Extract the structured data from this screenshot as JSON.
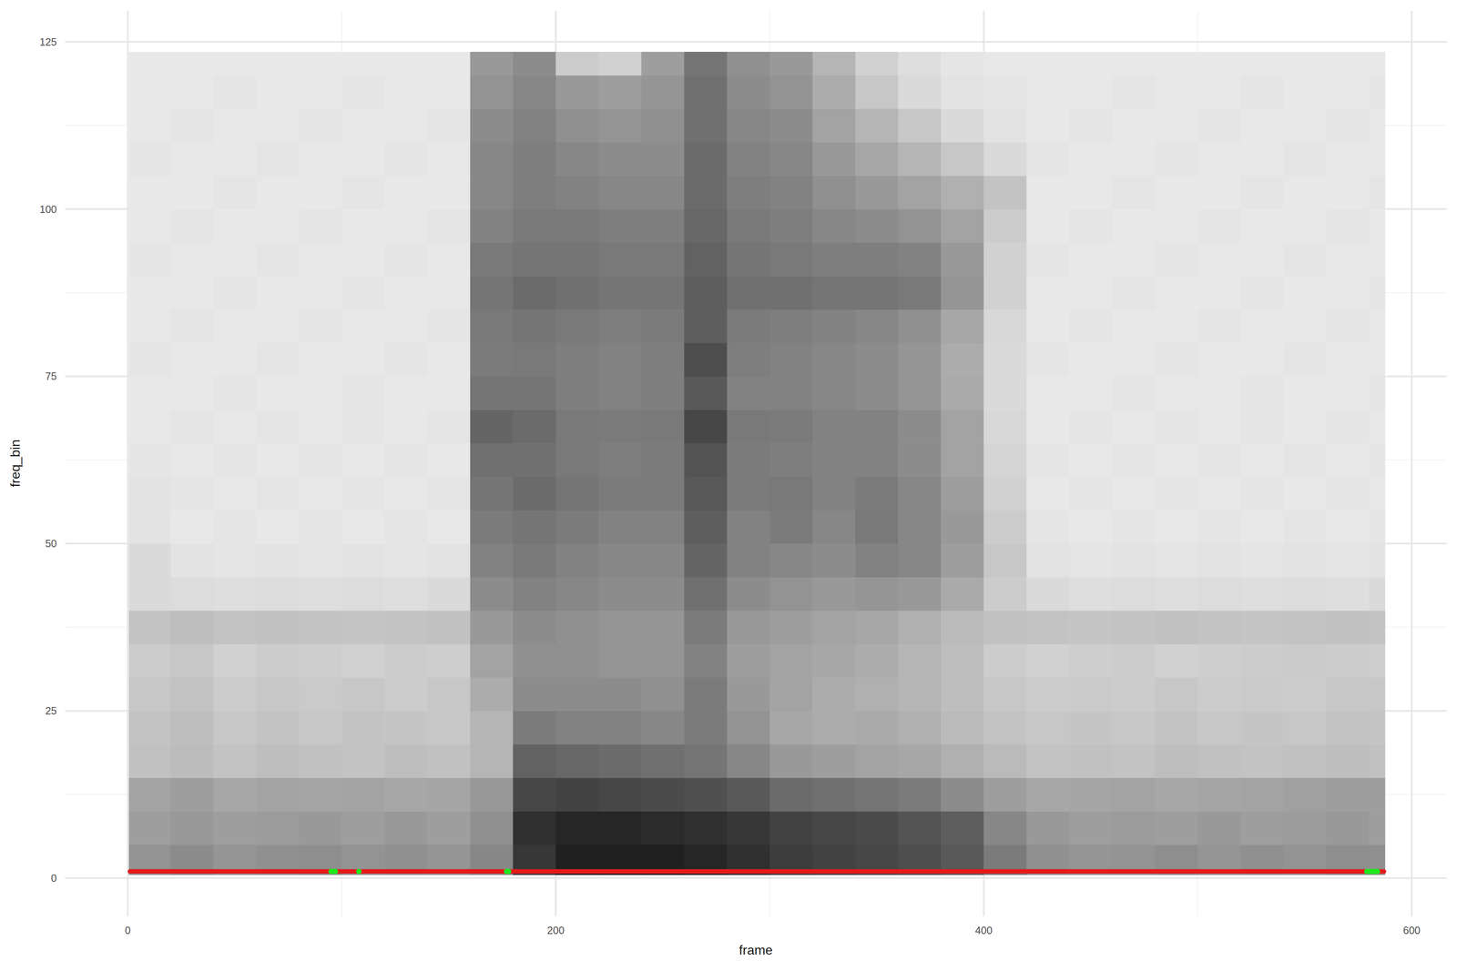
{
  "chart_data": {
    "type": "heatmap",
    "x_label": "frame",
    "y_label": "freq_bin",
    "xlim": [
      -29.35,
      616.35
    ],
    "ylim": [
      -5.65,
      129.65
    ],
    "xticks": [
      0,
      200,
      400,
      600
    ],
    "yticks": [
      0,
      25,
      50,
      75,
      100,
      125
    ],
    "grid": true,
    "cells": {
      "x_edges": [
        0.5,
        20,
        40,
        60,
        80,
        100,
        120,
        140,
        160,
        180,
        200,
        220,
        240,
        260,
        280,
        300,
        320,
        340,
        360,
        380,
        400,
        420,
        440,
        460,
        480,
        500,
        520,
        540,
        560,
        580,
        587.5
      ],
      "y_edges": [
        0.5,
        5,
        10,
        15,
        20,
        25,
        30,
        35,
        40,
        45,
        50,
        55,
        60,
        65,
        70,
        75,
        80,
        85,
        90,
        95,
        100,
        105,
        110,
        115,
        120,
        123.5
      ],
      "color_range": [
        0,
        100
      ],
      "values": [
        [
          45,
          48,
          44,
          46,
          47,
          45,
          46,
          44,
          50,
          85,
          95,
          95,
          95,
          92,
          88,
          82,
          80,
          78,
          75,
          70,
          55,
          46,
          44,
          45,
          47,
          44,
          46,
          45,
          47,
          46
        ],
        [
          40,
          42,
          40,
          41,
          42,
          40,
          42,
          40,
          46,
          88,
          92,
          92,
          90,
          88,
          85,
          80,
          78,
          76,
          72,
          68,
          50,
          42,
          40,
          41,
          40,
          42,
          40,
          41,
          42,
          40
        ],
        [
          38,
          40,
          36,
          38,
          37,
          38,
          36,
          37,
          42,
          78,
          80,
          78,
          76,
          74,
          70,
          62,
          60,
          58,
          55,
          48,
          40,
          36,
          37,
          38,
          36,
          37,
          38,
          39,
          40,
          40
        ],
        [
          25,
          27,
          24,
          26,
          25,
          24,
          26,
          25,
          30,
          66,
          64,
          62,
          60,
          58,
          50,
          42,
          40,
          38,
          36,
          32,
          28,
          24,
          25,
          24,
          26,
          25,
          24,
          25,
          26,
          25
        ],
        [
          24,
          26,
          22,
          24,
          22,
          24,
          23,
          22,
          30,
          55,
          52,
          52,
          50,
          55,
          45,
          36,
          34,
          35,
          32,
          28,
          24,
          22,
          23,
          22,
          24,
          22,
          23,
          22,
          24,
          23
        ],
        [
          22,
          24,
          20,
          22,
          21,
          22,
          20,
          22,
          34,
          48,
          48,
          48,
          46,
          55,
          42,
          38,
          34,
          32,
          30,
          26,
          22,
          20,
          21,
          20,
          22,
          20,
          21,
          20,
          22,
          22
        ],
        [
          20,
          22,
          18,
          20,
          19,
          18,
          20,
          19,
          38,
          46,
          46,
          44,
          44,
          52,
          40,
          38,
          36,
          34,
          30,
          26,
          20,
          18,
          19,
          20,
          18,
          19,
          20,
          21,
          20,
          19
        ],
        [
          24,
          26,
          24,
          25,
          24,
          23,
          24,
          25,
          42,
          48,
          46,
          44,
          44,
          55,
          42,
          40,
          38,
          36,
          32,
          28,
          25,
          24,
          23,
          24,
          25,
          24,
          23,
          24,
          25,
          24
        ],
        [
          14,
          13,
          12,
          13,
          12,
          13,
          12,
          14,
          48,
          52,
          50,
          48,
          48,
          60,
          48,
          45,
          42,
          44,
          42,
          35,
          20,
          14,
          12,
          13,
          12,
          13,
          12,
          13,
          12,
          14
        ],
        [
          14,
          10,
          9,
          10,
          9,
          10,
          9,
          10,
          52,
          56,
          52,
          50,
          50,
          65,
          52,
          50,
          48,
          52,
          50,
          40,
          22,
          10,
          9,
          10,
          9,
          10,
          9,
          10,
          9,
          10
        ],
        [
          10,
          8,
          9,
          8,
          9,
          8,
          9,
          8,
          55,
          58,
          55,
          52,
          52,
          68,
          52,
          55,
          50,
          56,
          50,
          42,
          20,
          9,
          8,
          9,
          8,
          9,
          8,
          9,
          8,
          9
        ],
        [
          10,
          9,
          8,
          9,
          8,
          9,
          8,
          9,
          58,
          62,
          58,
          55,
          55,
          70,
          55,
          56,
          52,
          55,
          50,
          40,
          18,
          8,
          9,
          8,
          9,
          8,
          9,
          8,
          9,
          8
        ],
        [
          9,
          8,
          9,
          8,
          9,
          8,
          9,
          8,
          60,
          60,
          56,
          54,
          55,
          72,
          55,
          54,
          52,
          52,
          48,
          38,
          16,
          9,
          8,
          9,
          8,
          9,
          8,
          9,
          8,
          9
        ],
        [
          8,
          9,
          8,
          9,
          8,
          9,
          8,
          9,
          65,
          62,
          56,
          55,
          56,
          78,
          56,
          55,
          52,
          52,
          48,
          38,
          15,
          8,
          9,
          8,
          9,
          8,
          9,
          8,
          9,
          8
        ],
        [
          8,
          8,
          9,
          8,
          8,
          9,
          8,
          8,
          58,
          58,
          54,
          52,
          54,
          70,
          52,
          52,
          50,
          48,
          44,
          35,
          14,
          8,
          8,
          9,
          8,
          8,
          9,
          8,
          8,
          9
        ],
        [
          9,
          8,
          8,
          9,
          8,
          8,
          9,
          8,
          55,
          56,
          54,
          52,
          54,
          75,
          54,
          52,
          50,
          48,
          44,
          34,
          14,
          9,
          8,
          8,
          9,
          8,
          8,
          9,
          8,
          8
        ],
        [
          8,
          9,
          8,
          8,
          9,
          8,
          8,
          9,
          56,
          58,
          56,
          54,
          55,
          68,
          55,
          54,
          52,
          50,
          46,
          36,
          15,
          8,
          9,
          8,
          8,
          9,
          8,
          8,
          9,
          8
        ],
        [
          8,
          8,
          9,
          8,
          8,
          9,
          8,
          8,
          58,
          62,
          60,
          58,
          58,
          68,
          60,
          60,
          58,
          58,
          56,
          44,
          18,
          8,
          8,
          9,
          8,
          8,
          9,
          8,
          8,
          9
        ],
        [
          9,
          8,
          8,
          9,
          8,
          8,
          9,
          8,
          56,
          58,
          58,
          56,
          56,
          66,
          58,
          56,
          54,
          54,
          52,
          42,
          18,
          9,
          8,
          8,
          9,
          8,
          8,
          9,
          8,
          8
        ],
        [
          8,
          9,
          8,
          8,
          9,
          8,
          8,
          9,
          52,
          56,
          56,
          54,
          54,
          64,
          56,
          54,
          50,
          48,
          45,
          38,
          20,
          8,
          9,
          8,
          8,
          9,
          8,
          8,
          9,
          8
        ],
        [
          8,
          8,
          9,
          8,
          8,
          9,
          8,
          8,
          50,
          54,
          52,
          50,
          50,
          62,
          54,
          52,
          46,
          42,
          38,
          32,
          24,
          8,
          8,
          9,
          8,
          8,
          9,
          8,
          8,
          9
        ],
        [
          9,
          8,
          8,
          9,
          8,
          8,
          9,
          8,
          50,
          54,
          50,
          48,
          48,
          62,
          52,
          50,
          42,
          36,
          30,
          22,
          14,
          9,
          8,
          8,
          9,
          8,
          8,
          9,
          8,
          8
        ],
        [
          8,
          9,
          8,
          8,
          9,
          8,
          8,
          9,
          48,
          52,
          46,
          44,
          46,
          60,
          50,
          48,
          38,
          30,
          22,
          14,
          10,
          8,
          9,
          8,
          8,
          9,
          8,
          8,
          9,
          8
        ],
        [
          8,
          8,
          9,
          8,
          8,
          9,
          8,
          8,
          45,
          50,
          42,
          40,
          44,
          60,
          48,
          45,
          34,
          22,
          14,
          10,
          9,
          8,
          8,
          9,
          8,
          8,
          9,
          8,
          8,
          9
        ],
        [
          8,
          8,
          8,
          8,
          8,
          8,
          8,
          8,
          42,
          48,
          20,
          18,
          40,
          58,
          46,
          42,
          30,
          18,
          12,
          9,
          8,
          8,
          8,
          8,
          8,
          8,
          8,
          8,
          8,
          8
        ]
      ]
    },
    "series": [
      {
        "type": "line",
        "color": "#e41a1c",
        "x": [
          1,
          587
        ],
        "values": [
          1,
          1
        ]
      },
      {
        "type": "scatter",
        "color": "#1de91d",
        "marker": "circle",
        "x": [
          95,
          96,
          97,
          108,
          177,
          178,
          579,
          580,
          581,
          582,
          583,
          584
        ],
        "values": [
          1,
          1,
          1,
          1,
          1,
          1,
          1,
          1,
          1,
          1,
          1,
          1
        ]
      }
    ]
  }
}
